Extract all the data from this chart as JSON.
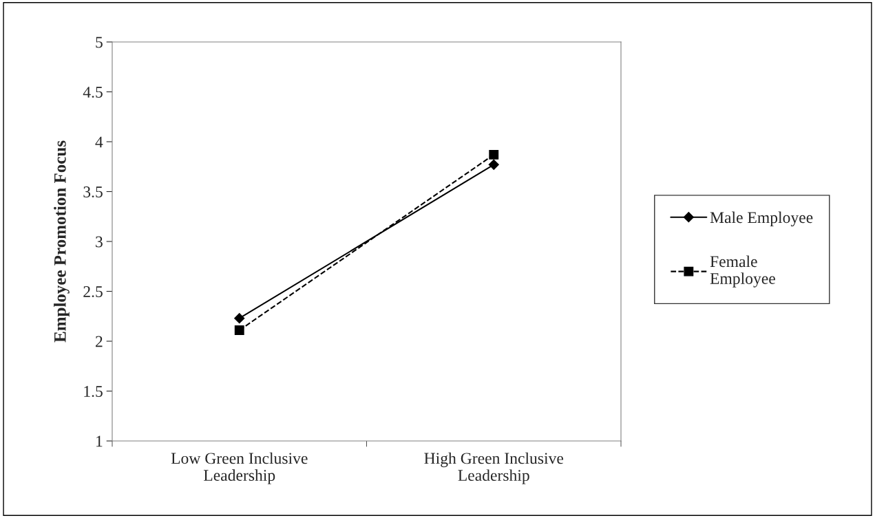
{
  "chart_data": {
    "type": "line",
    "ylabel": "Employee Promotion Focus",
    "categories": [
      "Low Green Inclusive\nLeadership",
      "High Green Inclusive\nLeadership"
    ],
    "series": [
      {
        "name": "Male Employee",
        "color": "#000000",
        "values": [
          2.23,
          3.77
        ],
        "marker": "diamond",
        "line_style": "solid"
      },
      {
        "name": "Female\nEmployee",
        "color": "#000000",
        "values": [
          2.11,
          3.87
        ],
        "marker": "square",
        "line_style": "dashed"
      }
    ],
    "ylim": [
      1,
      5
    ],
    "yticks": [
      1,
      1.5,
      2,
      2.5,
      3,
      3.5,
      4,
      4.5,
      5
    ],
    "grid": false,
    "legend": "right"
  }
}
